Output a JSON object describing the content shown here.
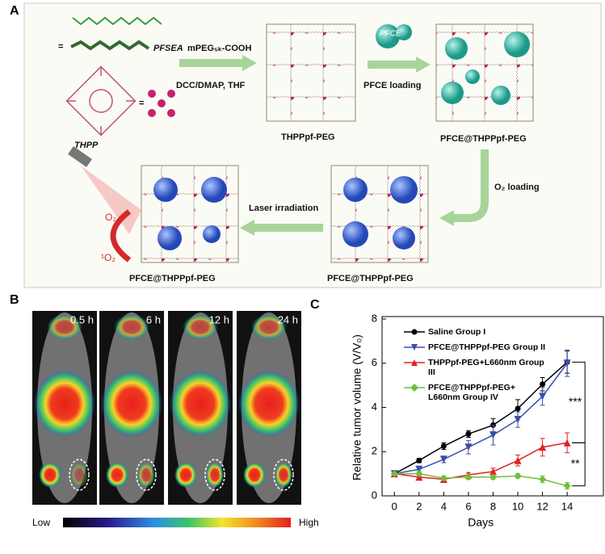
{
  "panels": {
    "a": "A",
    "b": "B",
    "c": "C"
  },
  "panel_a": {
    "pfsea": "PFSEA",
    "mpeg": "mPEG₅ₖ-COOH",
    "equals": "=",
    "thpp": "THPP",
    "step1": "DCC/DMAP,  THF",
    "product1": "THPPpf-PEG",
    "pfce": "PFCE",
    "step2": "PFCE loading",
    "product2": "PFCE@THPPpf-PEG",
    "step3": "O₂ loading",
    "product3": "PFCE@THPPpf-PEG",
    "step4": "Laser irradiation",
    "product4": "PFCE@THPPpf-PEG",
    "o2": "O₂",
    "singlet": "¹O₂"
  },
  "panel_b": {
    "times": [
      "0.5 h",
      "6 h",
      "12 h",
      "24 h"
    ],
    "scale_low": "Low",
    "scale_high": "High"
  },
  "chart_data": {
    "type": "line",
    "xlabel": "Days",
    "ylabel": "Relative tumor volume (V/V₀)",
    "x": [
      0,
      2,
      4,
      6,
      8,
      10,
      12,
      14
    ],
    "xlim": [
      -1,
      17
    ],
    "xticks": [
      0,
      2,
      4,
      6,
      8,
      10,
      12,
      14
    ],
    "ylim": [
      0,
      8
    ],
    "yticks": [
      0,
      2,
      4,
      6,
      8
    ],
    "series": [
      {
        "name": "Saline Group I",
        "color": "#000000",
        "marker": "circle",
        "values": [
          1,
          1.6,
          2.25,
          2.8,
          3.2,
          3.95,
          5.05,
          6.05
        ],
        "errors": [
          0.05,
          0.1,
          0.15,
          0.15,
          0.3,
          0.4,
          0.3,
          0.5
        ]
      },
      {
        "name": "PFCE@THPPpf-PEG Group II",
        "color": "#3b4fa8",
        "marker": "triangle-down",
        "values": [
          1,
          1.2,
          1.65,
          2.2,
          2.75,
          3.45,
          4.5,
          6.0
        ],
        "errors": [
          0.05,
          0.1,
          0.15,
          0.3,
          0.45,
          0.35,
          0.4,
          0.6
        ]
      },
      {
        "name": "THPPpf-PEG+L660nm Group III",
        "color": "#e02020",
        "marker": "triangle-up",
        "values": [
          1,
          0.85,
          0.75,
          0.95,
          1.1,
          1.6,
          2.2,
          2.4
        ],
        "errors": [
          0.05,
          0.1,
          0.1,
          0.1,
          0.15,
          0.25,
          0.4,
          0.45
        ]
      },
      {
        "name": "PFCE@THPPpf-PEG+ L660nm Group IV",
        "color": "#6fbf3a",
        "marker": "diamond",
        "values": [
          1,
          1,
          0.8,
          0.85,
          0.85,
          0.9,
          0.75,
          0.45
        ],
        "errors": [
          0.05,
          0.1,
          0.1,
          0.1,
          0.1,
          0.1,
          0.15,
          0.15
        ]
      }
    ],
    "annotations": [
      "***",
      "**"
    ]
  }
}
